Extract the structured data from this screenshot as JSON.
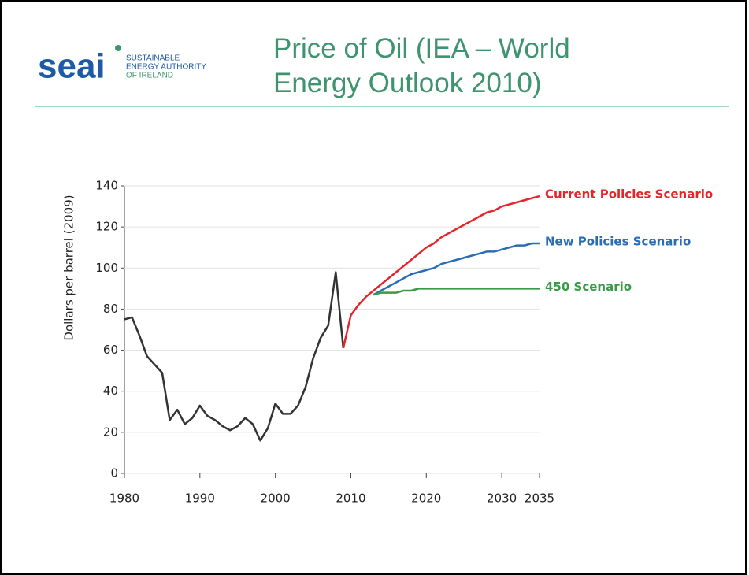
{
  "header": {
    "logo": "seai",
    "logo_lines": [
      "SUSTAINABLE",
      "ENERGY AUTHORITY",
      "OF IRELAND"
    ],
    "title": "Price of Oil (IEA – World Energy Outlook 2010)"
  },
  "chart_data": {
    "type": "line",
    "ylabel": "Dollars per barrel (2009)",
    "x": [
      1980,
      1981,
      1982,
      1983,
      1984,
      1985,
      1986,
      1987,
      1988,
      1989,
      1990,
      1991,
      1992,
      1993,
      1994,
      1995,
      1996,
      1997,
      1998,
      1999,
      2000,
      2001,
      2002,
      2003,
      2004,
      2005,
      2006,
      2007,
      2008,
      2009,
      2010,
      2011,
      2012,
      2013,
      2014,
      2015,
      2016,
      2017,
      2018,
      2019,
      2020,
      2021,
      2022,
      2023,
      2024,
      2025,
      2026,
      2027,
      2028,
      2029,
      2030,
      2031,
      2032,
      2033,
      2034,
      2035
    ],
    "series": [
      {
        "color": "#333333",
        "values": [
          75,
          76,
          67,
          57,
          53,
          49,
          26,
          31,
          24,
          27,
          33,
          28,
          26,
          23,
          21,
          23,
          27,
          24,
          16,
          22,
          34,
          29,
          29,
          33,
          42,
          56,
          66,
          72,
          98,
          61,
          null,
          null,
          null,
          null,
          null,
          null,
          null,
          null,
          null,
          null,
          null,
          null,
          null,
          null,
          null,
          null,
          null,
          null,
          null,
          null,
          null,
          null,
          null,
          null,
          null,
          null
        ]
      },
      {
        "name": "Current Policies Scenario",
        "color": "#e3262b",
        "values": [
          null,
          null,
          null,
          null,
          null,
          null,
          null,
          null,
          null,
          null,
          null,
          null,
          null,
          null,
          null,
          null,
          null,
          null,
          null,
          null,
          null,
          null,
          null,
          null,
          null,
          null,
          null,
          null,
          null,
          61,
          77,
          82,
          86,
          89,
          92,
          95,
          98,
          101,
          104,
          107,
          110,
          112,
          115,
          117,
          119,
          121,
          123,
          125,
          127,
          128,
          130,
          131,
          132,
          133,
          134,
          135
        ]
      },
      {
        "name": "New Policies Scenario",
        "color": "#2a6db5",
        "values": [
          null,
          null,
          null,
          null,
          null,
          null,
          null,
          null,
          null,
          null,
          null,
          null,
          null,
          null,
          null,
          null,
          null,
          null,
          null,
          null,
          null,
          null,
          null,
          null,
          null,
          null,
          null,
          null,
          null,
          null,
          null,
          null,
          null,
          87,
          89,
          91,
          93,
          95,
          97,
          98,
          99,
          100,
          102,
          103,
          104,
          105,
          106,
          107,
          108,
          108,
          109,
          110,
          111,
          111,
          112,
          112
        ]
      },
      {
        "name": "450 Scenario",
        "color": "#3a9a48",
        "values": [
          null,
          null,
          null,
          null,
          null,
          null,
          null,
          null,
          null,
          null,
          null,
          null,
          null,
          null,
          null,
          null,
          null,
          null,
          null,
          null,
          null,
          null,
          null,
          null,
          null,
          null,
          null,
          null,
          null,
          null,
          null,
          null,
          null,
          87,
          88,
          88,
          88,
          89,
          89,
          90,
          90,
          90,
          90,
          90,
          90,
          90,
          90,
          90,
          90,
          90,
          90,
          90,
          90,
          90,
          90,
          90
        ]
      }
    ],
    "xlim": [
      1980,
      2035
    ],
    "xticks": [
      1980,
      1990,
      2000,
      2010,
      2020,
      2030,
      2035
    ],
    "ylim": [
      0,
      140
    ],
    "yticks": [
      0,
      20,
      40,
      60,
      80,
      100,
      120,
      140
    ],
    "grid": true
  }
}
